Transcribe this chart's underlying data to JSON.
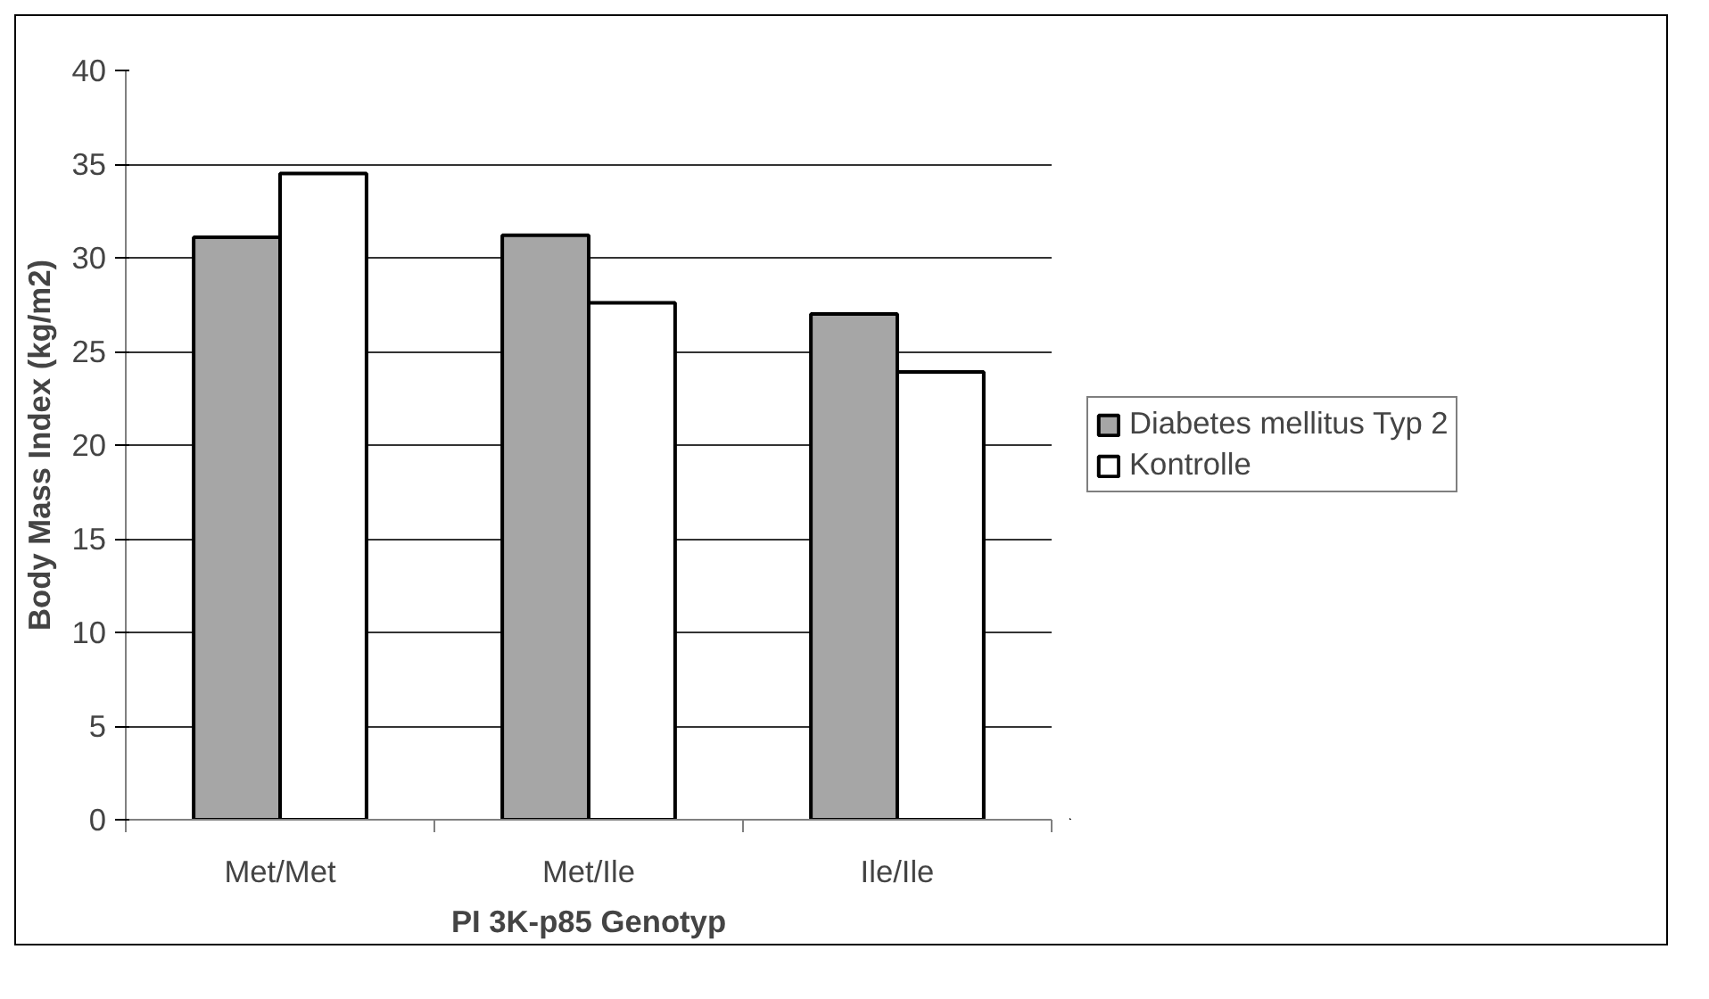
{
  "chart_data": {
    "type": "bar",
    "xlabel": "PI 3K-p85 Genotyp",
    "ylabel": "Body Mass Index (kg/m2)",
    "categories": [
      "Met/Met",
      "Met/Ile",
      "Ile/Ile"
    ],
    "series": [
      {
        "name": "Diabetes mellitus Typ 2",
        "color": "#a6a6a6",
        "values": [
          31.1,
          31.2,
          27.0
        ]
      },
      {
        "name": "Kontrolle",
        "color": "#ffffff",
        "values": [
          34.5,
          27.6,
          23.9
        ]
      }
    ],
    "ylim": [
      0,
      40
    ],
    "yticks": [
      0,
      5,
      10,
      15,
      20,
      25,
      30,
      35,
      40
    ],
    "grid": "y",
    "legend": "right"
  }
}
